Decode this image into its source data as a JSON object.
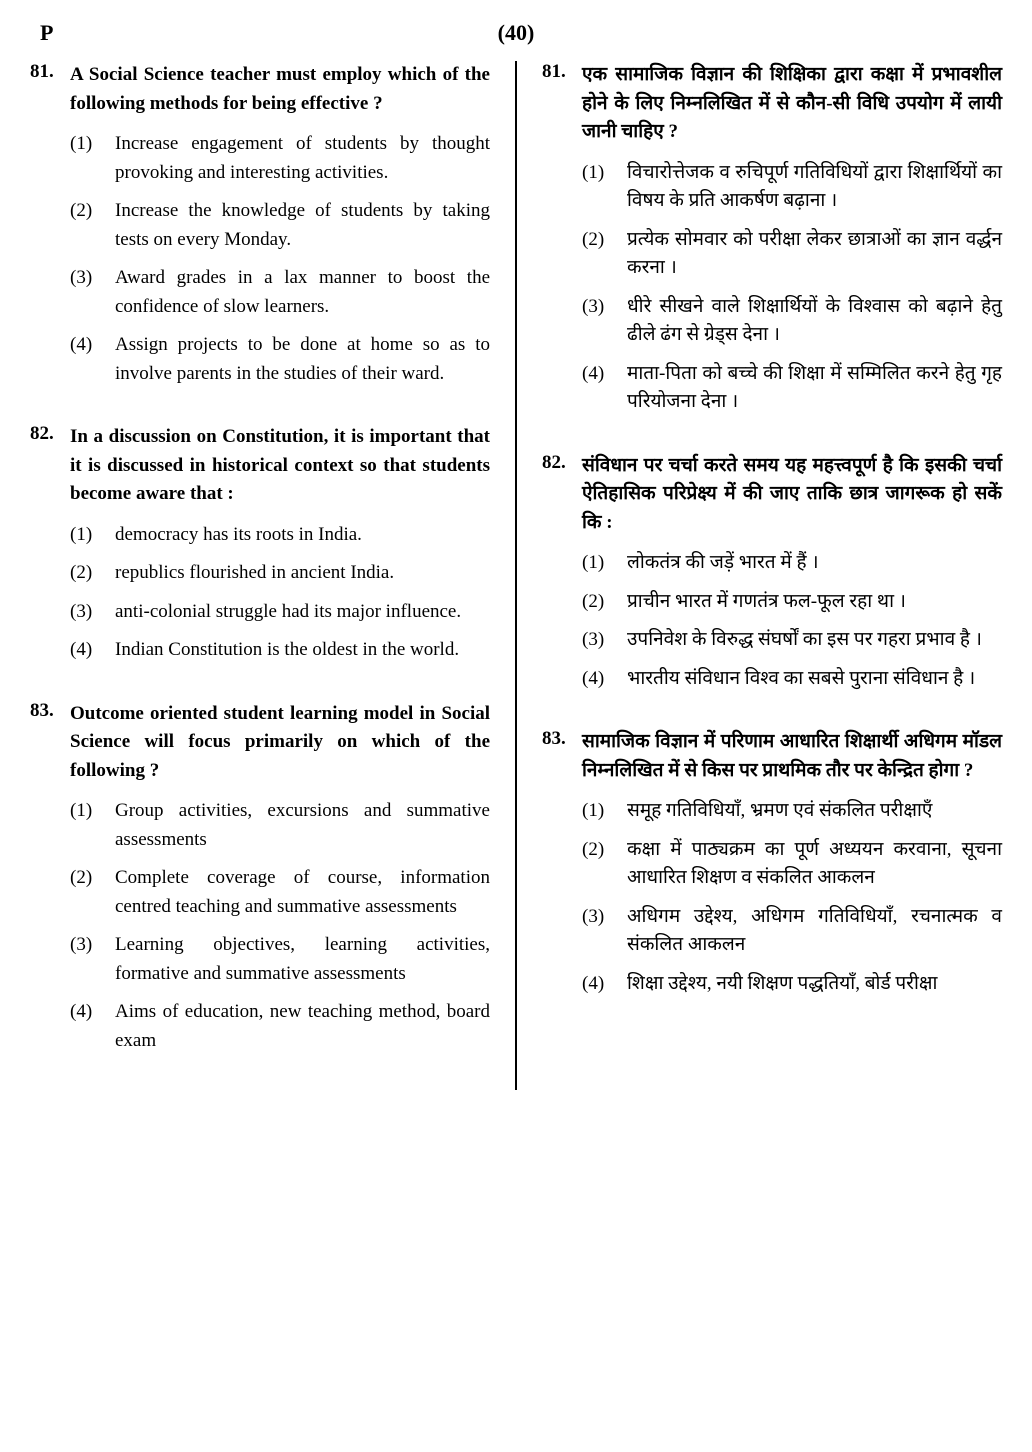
{
  "header": {
    "left": "P",
    "center": "(40)"
  },
  "left_column": {
    "questions": [
      {
        "number": "81.",
        "stem": "A Social Science teacher must employ which of the following methods for being effective ?",
        "options": [
          {
            "num": "(1)",
            "text": "Increase engagement of students by thought provoking and interesting activities."
          },
          {
            "num": "(2)",
            "text": "Increase the knowledge of students by taking tests on every Monday."
          },
          {
            "num": "(3)",
            "text": "Award grades in a lax manner to boost the confidence of slow learners."
          },
          {
            "num": "(4)",
            "text": "Assign projects to be done at home so as to involve parents in the studies of their ward."
          }
        ]
      },
      {
        "number": "82.",
        "stem": "In a discussion on Constitution, it is important that it is discussed in historical context so that students become aware that :",
        "options": [
          {
            "num": "(1)",
            "text": "democracy has its roots in India."
          },
          {
            "num": "(2)",
            "text": "republics flourished in ancient India."
          },
          {
            "num": "(3)",
            "text": "anti-colonial struggle had its major influence."
          },
          {
            "num": "(4)",
            "text": "Indian Constitution is the oldest in the world."
          }
        ]
      },
      {
        "number": "83.",
        "stem": "Outcome oriented student learning model in Social Science will focus primarily on which of the following ?",
        "options": [
          {
            "num": "(1)",
            "text": "Group activities, excursions and summative assessments"
          },
          {
            "num": "(2)",
            "text": "Complete coverage of course, information centred teaching and summative assessments"
          },
          {
            "num": "(3)",
            "text": "Learning objectives, learning activities, formative and summative assessments"
          },
          {
            "num": "(4)",
            "text": "Aims of education, new teaching method, board exam"
          }
        ]
      }
    ]
  },
  "right_column": {
    "questions": [
      {
        "number": "81.",
        "stem": "एक सामाजिक विज्ञान की शिक्षिका द्वारा कक्षा में प्रभावशील होने के लिए निम्नलिखित में से कौन-सी विधि उपयोग में लायी जानी चाहिए ?",
        "options": [
          {
            "num": "(1)",
            "text": "विचारोत्तेजक व रुचिपूर्ण गतिविधियों द्वारा शिक्षार्थियों का विषय के प्रति आकर्षण बढ़ाना ।"
          },
          {
            "num": "(2)",
            "text": "प्रत्येक सोमवार को परीक्षा लेकर छात्राओं का ज्ञान वर्द्धन करना ।"
          },
          {
            "num": "(3)",
            "text": "धीरे सीखने वाले शिक्षार्थियों के विश्वास को बढ़ाने हेतु ढीले ढंग से ग्रेड्स देना ।"
          },
          {
            "num": "(4)",
            "text": "माता-पिता को बच्चे की शिक्षा में सम्मिलित करने हेतु गृह परियोजना देना ।"
          }
        ]
      },
      {
        "number": "82.",
        "stem": "संविधान पर चर्चा करते समय यह महत्त्वपूर्ण है कि इसकी चर्चा ऐतिहासिक परिप्रेक्ष्य में की जाए ताकि छात्र जागरूक हो सकें कि :",
        "options": [
          {
            "num": "(1)",
            "text": "लोकतंत्र की जड़ें भारत में हैं ।"
          },
          {
            "num": "(2)",
            "text": "प्राचीन भारत में गणतंत्र फल-फूल रहा था ।"
          },
          {
            "num": "(3)",
            "text": "उपनिवेश के विरुद्ध संघर्षों का इस पर गहरा प्रभाव है ।"
          },
          {
            "num": "(4)",
            "text": "भारतीय संविधान विश्व का सबसे पुराना संविधान है ।"
          }
        ]
      },
      {
        "number": "83.",
        "stem": "सामाजिक विज्ञान में परिणाम आधारित शिक्षार्थी अधिगम मॉडल निम्नलिखित में से किस पर प्राथमिक तौर पर केन्द्रित होगा ?",
        "options": [
          {
            "num": "(1)",
            "text": "समूह गतिविधियाँ, भ्रमण एवं संकलित परीक्षाएँ"
          },
          {
            "num": "(2)",
            "text": "कक्षा में पाठ्यक्रम का पूर्ण अध्ययन करवाना, सूचना आधारित शिक्षण व संकलित आकलन"
          },
          {
            "num": "(3)",
            "text": "अधिगम उद्देश्य, अधिगम गतिविधियाँ, रचनात्मक व संकलित आकलन"
          },
          {
            "num": "(4)",
            "text": "शिक्षा उद्देश्य, नयी शिक्षण पद्धतियाँ, बोर्ड परीक्षा"
          }
        ]
      }
    ]
  }
}
